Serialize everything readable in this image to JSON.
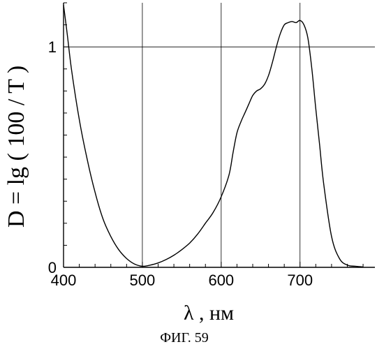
{
  "chart_data": {
    "type": "line",
    "xlabel": "λ , нм",
    "ylabel": "D = lg ( 100 / T )",
    "caption": "ФИГ. 59",
    "xlim": [
      400,
      795
    ],
    "ylim": [
      0,
      1.2
    ],
    "xticks": [
      400,
      500,
      600,
      700
    ],
    "yticks": [
      0,
      1
    ],
    "grid": true,
    "series": [
      {
        "x": [
          400,
          405,
          410,
          420,
          430,
          440,
          450,
          460,
          470,
          480,
          490,
          500,
          510,
          520,
          530,
          540,
          550,
          560,
          570,
          580,
          590,
          600,
          610,
          615,
          620,
          625,
          630,
          635,
          640,
          645,
          650,
          655,
          660,
          665,
          670,
          675,
          680,
          685,
          690,
          695,
          700,
          705,
          710,
          715,
          720,
          725,
          730,
          740,
          750,
          760,
          770,
          780
        ],
        "y": [
          1.19,
          1.05,
          0.9,
          0.67,
          0.49,
          0.34,
          0.22,
          0.14,
          0.08,
          0.04,
          0.015,
          0.005,
          0.01,
          0.02,
          0.035,
          0.055,
          0.08,
          0.11,
          0.15,
          0.2,
          0.25,
          0.32,
          0.42,
          0.52,
          0.61,
          0.66,
          0.7,
          0.74,
          0.78,
          0.8,
          0.81,
          0.83,
          0.87,
          0.93,
          1.0,
          1.06,
          1.1,
          1.11,
          1.115,
          1.11,
          1.12,
          1.1,
          1.04,
          0.9,
          0.72,
          0.55,
          0.38,
          0.14,
          0.04,
          0.01,
          0.005,
          0.002
        ]
      }
    ]
  }
}
